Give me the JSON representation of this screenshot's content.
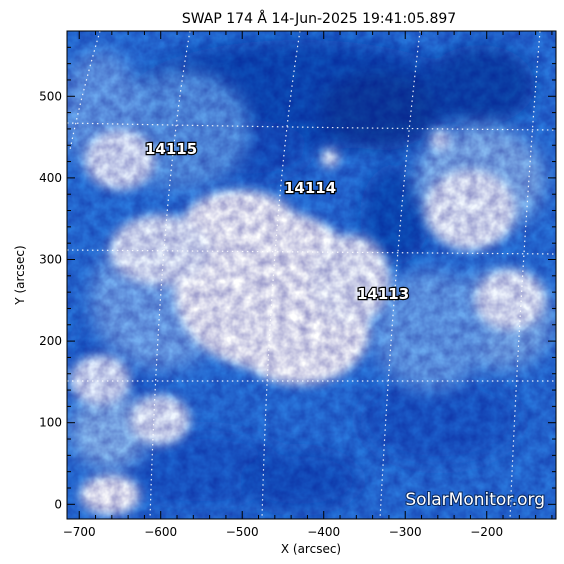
{
  "title": "SWAP 174 Å 14-Jun-2025 19:41:05.897",
  "xaxis": {
    "label": "X (arcsec)",
    "range": [
      -715,
      -115
    ],
    "ticks": [
      -700,
      -600,
      -500,
      -400,
      -300,
      -200
    ],
    "tick_labels": [
      "−700",
      "−600",
      "−500",
      "−400",
      "−300",
      "−200"
    ]
  },
  "yaxis": {
    "label": "Y (arcsec)",
    "range": [
      -18,
      580
    ],
    "ticks": [
      0,
      100,
      200,
      300,
      400,
      500
    ],
    "tick_labels": [
      "0",
      "100",
      "200",
      "300",
      "400",
      "500"
    ]
  },
  "active_regions": [
    {
      "label": "14115",
      "x": -625,
      "y": 433
    },
    {
      "label": "14114",
      "x": -443,
      "y": 384
    },
    {
      "label": "14113",
      "x": -352,
      "y": 257
    }
  ],
  "watermark": "SolarMonitor.org",
  "colors": {
    "background": "#ffffff",
    "deep_blue": "#0a3f9e",
    "mid_blue": "#1e6cd6",
    "light_blue": "#7fb4f2",
    "bright": "#ffffff"
  }
}
